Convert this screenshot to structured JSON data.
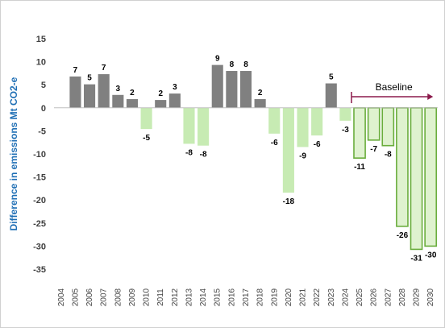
{
  "chart_data": {
    "type": "bar",
    "title": "",
    "xlabel": "",
    "ylabel": "Difference in emissions Mt CO2-e",
    "ylim": [
      -35,
      15
    ],
    "yticks": [
      15,
      10,
      5,
      0,
      -5,
      -10,
      -15,
      -20,
      -25,
      -30,
      -35
    ],
    "grid": false,
    "categories": [
      "2004",
      "2005",
      "2006",
      "2007",
      "2008",
      "2009",
      "2010",
      "2011",
      "2012",
      "2013",
      "2014",
      "2015",
      "2016",
      "2017",
      "2018",
      "2019",
      "2020",
      "2021",
      "2022",
      "2023",
      "2024",
      "2025",
      "2026",
      "2027",
      "2028",
      "2029",
      "2030"
    ],
    "values": [
      0,
      6.8,
      5.1,
      7.3,
      2.8,
      1.9,
      -4.6,
      1.7,
      3.1,
      -7.8,
      -8.2,
      9.3,
      8.0,
      8.0,
      1.9,
      -5.6,
      -18.4,
      -8.5,
      -6.0,
      5.3,
      -2.8,
      -10.9,
      -7.0,
      -8.2,
      -25.7,
      -30.7,
      -30.0
    ],
    "data_labels": [
      "",
      "7",
      "5",
      "7",
      "3",
      "2",
      "-5",
      "2",
      "3",
      "-8",
      "-8",
      "9",
      "8",
      "8",
      "2",
      "-6",
      "-18",
      "-9",
      "-6",
      "5",
      "-3",
      "-11",
      "-7",
      "-8",
      "-26",
      "-31",
      "-30"
    ],
    "annotation": {
      "label": "Baseline",
      "from": "2025",
      "to": "2030"
    },
    "colors": {
      "positive": "#808080",
      "negative": "#c7ebb3",
      "baseline_fill": "#dff2cf",
      "baseline_stroke": "#6aad3d",
      "arrow": "#8b1a4b",
      "ylabel": "#1f6fb5"
    }
  }
}
